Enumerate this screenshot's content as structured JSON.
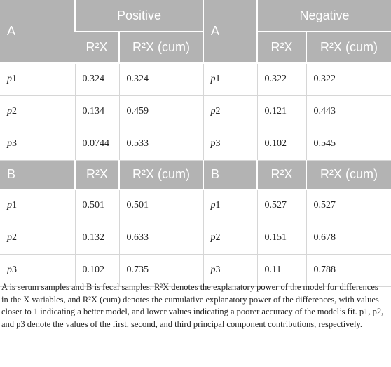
{
  "table": {
    "section_a": {
      "header_top": [
        "A",
        "Positive",
        "A",
        "Negative"
      ],
      "header_sub": [
        "R²X",
        "R²X (cum)",
        "R²X",
        "R²X (cum)"
      ],
      "rows": [
        [
          "p1",
          "0.324",
          "0.324",
          "p1",
          "0.322",
          "0.322"
        ],
        [
          "p2",
          "0.134",
          "0.459",
          "p2",
          "0.121",
          "0.443"
        ],
        [
          "p3",
          "0.0744",
          "0.533",
          "p3",
          "0.102",
          "0.545"
        ]
      ]
    },
    "section_b": {
      "header": [
        "B",
        "R²X",
        "R²X (cum)",
        "B",
        "R²X",
        "R²X (cum)"
      ],
      "rows": [
        [
          "p1",
          "0.501",
          "0.501",
          "p1",
          "0.527",
          "0.527"
        ],
        [
          "p2",
          "0.132",
          "0.633",
          "p2",
          "0.151",
          "0.678"
        ],
        [
          "p3",
          "0.102",
          "0.735",
          "p3",
          "0.11",
          "0.788"
        ]
      ]
    },
    "footnote": "A is serum samples and B is fecal samples. R²X denotes the explanatory power of the model for differences in the X variables, and R²X (cum) denotes the cumulative explanatory power of the differences, with values closer to 1 indicating a better model, and lower values indicating a poorer accuracy of the model’s fit. p1, p2, and p3 denote the values of the first, second, and third principal component contributions, respectively."
  }
}
